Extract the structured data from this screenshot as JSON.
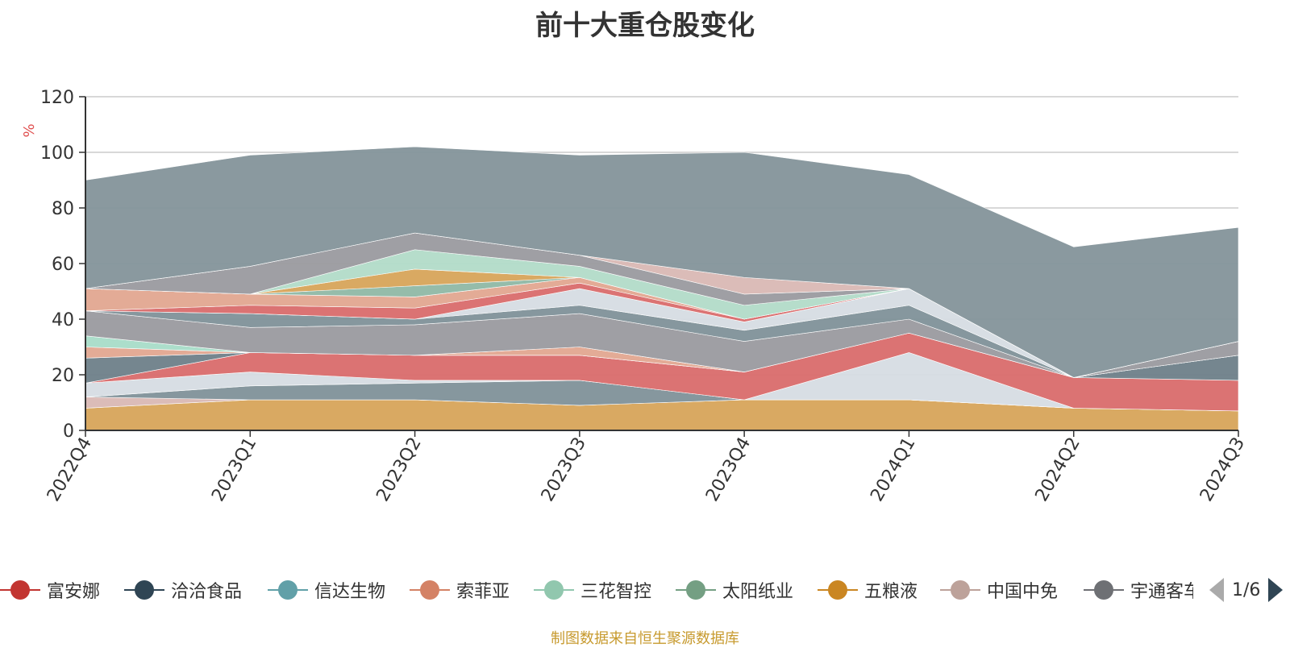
{
  "title": "前十大重仓股变化",
  "source_note": "制图数据来自恒生聚源数据库",
  "pager": {
    "text": "1/6"
  },
  "chart_data": {
    "type": "area",
    "title": "前十大重仓股变化",
    "ylabel": "%",
    "ylim": [
      0,
      120
    ],
    "yticks": [
      0,
      20,
      40,
      60,
      80,
      100,
      120
    ],
    "categories": [
      "2022Q4",
      "2023Q1",
      "2023Q2",
      "2023Q3",
      "2023Q4",
      "2024Q1",
      "2024Q2",
      "2024Q3"
    ],
    "grid": true,
    "legend_position": "bottom",
    "stacked": true,
    "series": [
      {
        "color": "#d7a45a",
        "values": [
          8,
          11,
          11,
          9,
          11,
          11,
          8,
          7
        ]
      },
      {
        "color": "#d9b8b4",
        "values": [
          4,
          0,
          0,
          0,
          0,
          0,
          0,
          0
        ]
      },
      {
        "color": "#7f9199",
        "values": [
          0,
          5,
          6,
          9,
          0,
          0,
          0,
          0
        ]
      },
      {
        "color": "#d6dce3",
        "values": [
          5,
          5,
          1,
          0,
          0,
          17,
          0,
          0
        ]
      },
      {
        "color": "#d96b6b",
        "values": [
          0,
          7,
          9,
          9,
          10,
          7,
          11,
          11
        ]
      },
      {
        "color": "#6e7f89",
        "values": [
          9,
          0,
          0,
          0,
          0,
          0,
          0,
          9
        ]
      },
      {
        "color": "#e2a690",
        "values": [
          4,
          0,
          0,
          3,
          0,
          0,
          0,
          0
        ]
      },
      {
        "color": "#a8dcc8",
        "values": [
          4,
          0,
          0,
          0,
          0,
          0,
          0,
          0
        ]
      },
      {
        "color": "#9a9a9f",
        "values": [
          9,
          9,
          11,
          12,
          11,
          5,
          0,
          5
        ]
      },
      {
        "color": "#7f9199",
        "values": [
          0,
          5,
          2,
          3,
          4,
          5,
          0,
          0
        ]
      },
      {
        "color": "#d6dce3",
        "values": [
          0,
          0,
          0,
          6,
          3,
          6,
          0,
          0
        ]
      },
      {
        "color": "#d96b6b",
        "values": [
          0,
          3,
          4,
          2,
          1,
          0,
          0,
          0
        ]
      },
      {
        "color": "#e2a690",
        "values": [
          8,
          4,
          4,
          2,
          0,
          0,
          0,
          0
        ]
      },
      {
        "color": "#8fb8a5",
        "values": [
          0,
          0,
          4,
          0,
          0,
          0,
          0,
          0
        ]
      },
      {
        "color": "#d7a45a",
        "values": [
          0,
          0,
          6,
          0,
          0,
          0,
          0,
          0
        ]
      },
      {
        "color": "#b2dbc8",
        "values": [
          0,
          0,
          7,
          4,
          5,
          0,
          0,
          0
        ]
      },
      {
        "color": "#9a9a9f",
        "values": [
          0,
          10,
          6,
          4,
          4,
          0,
          0,
          0
        ]
      },
      {
        "color": "#d9b8b4",
        "values": [
          0,
          0,
          0,
          0,
          6,
          0,
          0,
          0
        ]
      },
      {
        "color": "#84939a",
        "values": [
          39,
          40,
          31,
          36,
          45,
          41,
          47,
          41
        ]
      }
    ]
  },
  "legend": [
    {
      "label": "富安娜",
      "color": "#c23531"
    },
    {
      "label": "洽洽食品",
      "color": "#2f4554"
    },
    {
      "label": "信达生物",
      "color": "#61a0a8"
    },
    {
      "label": "索菲亚",
      "color": "#d48265"
    },
    {
      "label": "三花智控",
      "color": "#91c7ae"
    },
    {
      "label": "太阳纸业",
      "color": "#749f83"
    },
    {
      "label": "五粮液",
      "color": "#ca8622"
    },
    {
      "label": "中国中免",
      "color": "#bda29a"
    },
    {
      "label": "宇通客车",
      "color": "#6e7074"
    }
  ]
}
